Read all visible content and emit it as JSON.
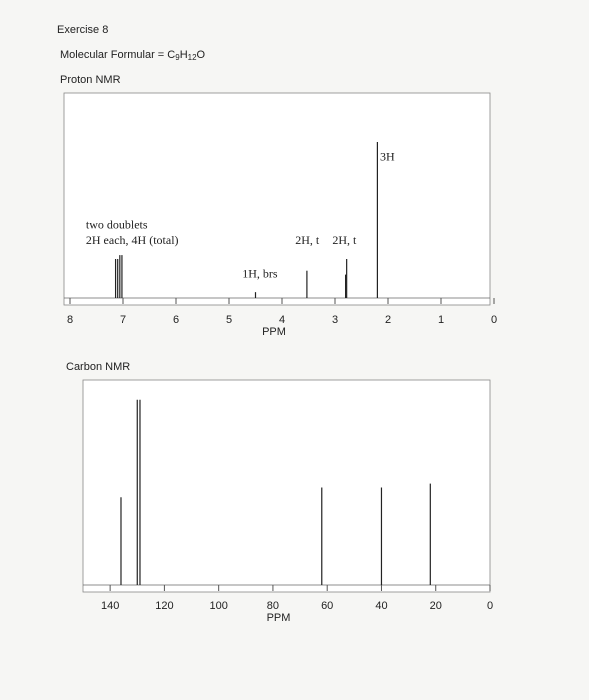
{
  "header": {
    "title": "Exercise 8",
    "formula_parts": [
      "Molecular Formular = C",
      "9",
      "H",
      "12",
      "O"
    ]
  },
  "spectra": [
    {
      "type": "spectrum",
      "title": "Proton NMR",
      "x_label": "PPM",
      "xlim": [
        8,
        0
      ],
      "xticks": [
        8,
        7,
        6,
        5,
        4,
        3,
        2,
        1,
        0
      ],
      "peak_ppm": [
        7.14,
        7.1,
        7.06,
        7.02,
        4.5,
        3.53,
        2.8,
        2.78,
        2.2
      ],
      "peak_height": [
        0.2,
        0.2,
        0.22,
        0.22,
        0.03,
        0.14,
        0.12,
        0.2,
        0.8
      ],
      "annotations": [
        {
          "text": "two doublets",
          "ppm": 7.7,
          "height": 0.37
        },
        {
          "text": "2H each, 4H (total)",
          "ppm": 7.7,
          "height": 0.29
        },
        {
          "text": "1H, brs",
          "ppm": 4.75,
          "height": 0.12
        },
        {
          "text": "2H, t",
          "ppm": 3.75,
          "height": 0.29
        },
        {
          "text": "2H, t",
          "ppm": 3.05,
          "height": 0.29
        },
        {
          "text": "3H",
          "ppm": 2.15,
          "height": 0.72
        }
      ]
    },
    {
      "type": "spectrum",
      "title": "Carbon NMR",
      "x_label": "PPM",
      "xlim": [
        150,
        0
      ],
      "xticks": [
        140,
        120,
        100,
        80,
        60,
        40,
        20,
        0
      ],
      "peak_ppm": [
        136,
        130,
        129,
        62,
        40,
        22
      ],
      "peak_height": [
        0.45,
        0.95,
        0.95,
        0.5,
        0.5,
        0.52
      ],
      "annotations": []
    }
  ]
}
